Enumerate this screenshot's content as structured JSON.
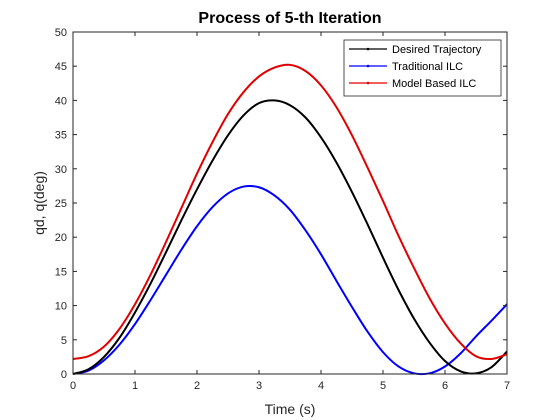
{
  "chart_data": {
    "type": "line",
    "title": "Process of 5-th Iteration",
    "xlabel": "Time (s)",
    "ylabel": "qd, q(deg)",
    "xlim": [
      0,
      7
    ],
    "ylim": [
      0,
      50
    ],
    "xticks": [
      "0",
      "1",
      "2",
      "3",
      "4",
      "5",
      "6",
      "7"
    ],
    "yticks": [
      "0",
      "5",
      "10",
      "15",
      "20",
      "25",
      "30",
      "35",
      "40",
      "45",
      "50"
    ],
    "grid": false,
    "legend_position": "top-right",
    "series": [
      {
        "name": "Desired Trajectory",
        "color": "#000000",
        "x": [
          0,
          0.25,
          0.5,
          0.75,
          1.0,
          1.25,
          1.5,
          1.75,
          2.0,
          2.25,
          2.5,
          2.75,
          3.0,
          3.25,
          3.5,
          3.75,
          4.0,
          4.25,
          4.5,
          4.75,
          5.0,
          5.25,
          5.5,
          5.75,
          6.0,
          6.25,
          6.5,
          6.75,
          7.0
        ],
        "y": [
          0,
          0.7,
          2.5,
          5.3,
          9.0,
          13.2,
          17.8,
          22.5,
          27.0,
          31.2,
          34.9,
          37.8,
          39.6,
          40.0,
          39.3,
          37.5,
          34.6,
          30.9,
          26.6,
          21.9,
          17.0,
          12.3,
          8.1,
          4.6,
          1.9,
          0.4,
          0.1,
          1.0,
          3.3
        ]
      },
      {
        "name": "Traditional ILC",
        "color": "#0000ff",
        "x": [
          0,
          0.25,
          0.5,
          0.75,
          1.0,
          1.25,
          1.5,
          1.75,
          2.0,
          2.25,
          2.5,
          2.75,
          3.0,
          3.25,
          3.5,
          3.75,
          4.0,
          4.25,
          4.5,
          4.75,
          5.0,
          5.25,
          5.5,
          5.75,
          6.0,
          6.25,
          6.5,
          6.75,
          7.0
        ],
        "y": [
          0,
          0.5,
          2.0,
          4.3,
          7.3,
          10.8,
          14.5,
          18.2,
          21.6,
          24.4,
          26.4,
          27.4,
          27.3,
          26.1,
          24.0,
          21.0,
          17.5,
          13.6,
          9.8,
          6.2,
          3.2,
          1.1,
          0.1,
          0.1,
          1.1,
          3.0,
          5.5,
          7.8,
          10.2
        ]
      },
      {
        "name": "Model Based ILC",
        "color": "#e00000",
        "x": [
          0,
          0.25,
          0.5,
          0.75,
          1.0,
          1.25,
          1.5,
          1.75,
          2.0,
          2.25,
          2.5,
          2.75,
          3.0,
          3.25,
          3.5,
          3.75,
          4.0,
          4.25,
          4.5,
          4.75,
          5.0,
          5.25,
          5.5,
          5.75,
          6.0,
          6.25,
          6.5,
          6.75,
          7.0
        ],
        "y": [
          2.2,
          2.6,
          4.0,
          6.6,
          10.2,
          14.5,
          19.3,
          24.3,
          29.3,
          33.9,
          38.0,
          41.2,
          43.5,
          44.8,
          45.2,
          44.3,
          42.2,
          39.0,
          34.9,
          30.2,
          25.3,
          20.2,
          15.5,
          11.1,
          7.4,
          4.5,
          2.6,
          2.2,
          2.9
        ]
      }
    ]
  }
}
